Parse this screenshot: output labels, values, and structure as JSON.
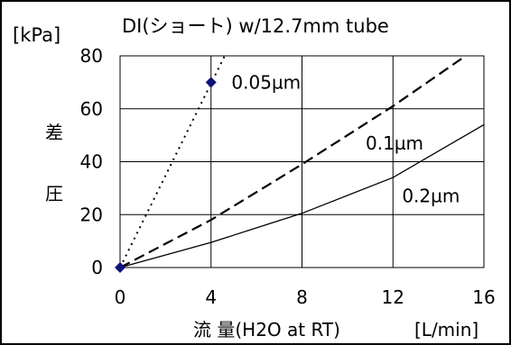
{
  "chart_data": {
    "type": "line",
    "title": "DI(ショート)  w/12.7mm tube",
    "y_unit": "[kPa]",
    "ylabel_chars": [
      "差",
      "圧"
    ],
    "xlabel": "流  量(H2O at RT)",
    "x_unit": "[L/min]",
    "xlim": [
      0,
      16
    ],
    "ylim": [
      0,
      80
    ],
    "x_ticks": [
      "0",
      "4",
      "8",
      "12",
      "16"
    ],
    "y_ticks": [
      "0",
      "20",
      "40",
      "60",
      "80"
    ],
    "grid": true,
    "series": [
      {
        "name": "0.05µm",
        "style": "dotted",
        "x": [
          0,
          4.6
        ],
        "y": [
          0,
          81
        ]
      },
      {
        "name": "0.1µm",
        "style": "dashed",
        "x": [
          0,
          4,
          8,
          12,
          15.2
        ],
        "y": [
          0,
          18,
          39,
          61,
          82
        ]
      },
      {
        "name": "0.2µm",
        "style": "solid",
        "x": [
          0,
          4,
          8,
          12,
          16
        ],
        "y": [
          0,
          9.5,
          20.5,
          34,
          54
        ]
      }
    ],
    "markers": [
      {
        "x": 0,
        "y": 0
      },
      {
        "x": 4,
        "y": 70
      }
    ],
    "colors": {
      "line": "#000000",
      "grid": "#000000",
      "marker": "#10137a"
    }
  }
}
